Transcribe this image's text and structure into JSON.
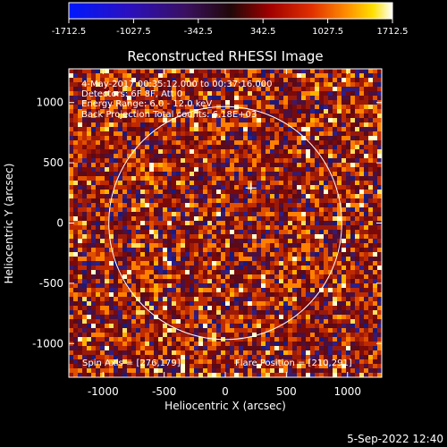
{
  "colorbar": {
    "ticks": [
      "-1712.5",
      "-1027.5",
      "-342.5",
      "342.5",
      "1027.5",
      "1712.5"
    ],
    "tick_values": [
      -1712.5,
      -1027.5,
      -342.5,
      342.5,
      1027.5,
      1712.5
    ],
    "range": [
      -1712.5,
      1712.5
    ]
  },
  "chart_data": {
    "type": "heatmap",
    "title": "Reconstructed RHESSI Image",
    "xlabel": "Heliocentric X (arcsec)",
    "ylabel": "Heliocentric Y (arcsec)",
    "xlim": [
      -1280,
      1280
    ],
    "ylim": [
      -1280,
      1280
    ],
    "x_ticks": [
      "-1000",
      "-500",
      "0",
      "500",
      "1000"
    ],
    "x_tick_values": [
      -1000,
      -500,
      0,
      500,
      1000
    ],
    "y_ticks": [
      "1000",
      "500",
      "0",
      "-500",
      "-1000"
    ],
    "y_tick_values": [
      1000,
      500,
      0,
      -500,
      -1000
    ],
    "info_lines": [
      "4-May-2017 00:35:12.000 to 00:37:16.000",
      "Detectors: 6F 8F, Att 0",
      "Energy Range: 6.0 - 12.0 keV",
      "Back Projection   Total counts: 6.18E+03"
    ],
    "spin_axis": "Spin Axis = [276,179]",
    "flare_position": "Flare Position = [210,291]",
    "flare_xy": [
      210,
      291
    ],
    "solar_disk_radius": 953,
    "colormap": "rhessi-hot (blue-purple-red-orange-yellow-white)"
  },
  "footer": {
    "date": "5-Sep-2022 12:40"
  }
}
